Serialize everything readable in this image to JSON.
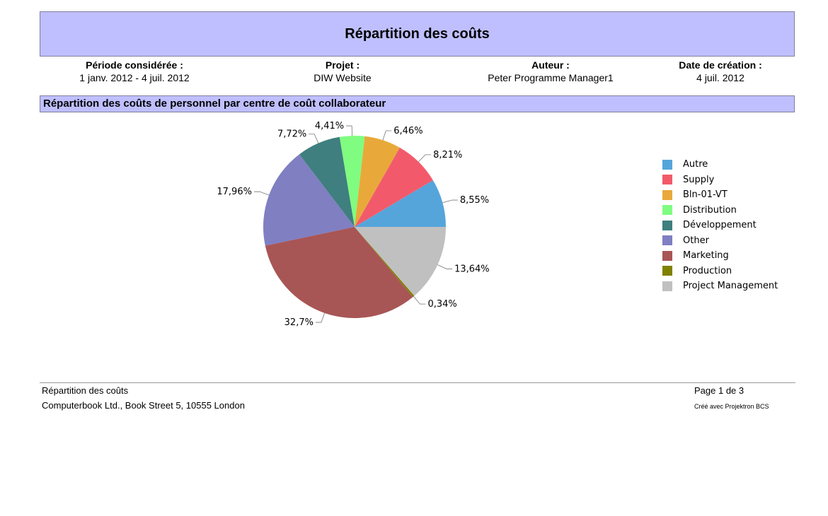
{
  "header": {
    "title": "Répartition des coûts",
    "period_label": "Période considérée :",
    "period_value": "1 janv. 2012 - 4 juil. 2012",
    "project_label": "Projet :",
    "project_value": "DIW Website",
    "author_label": "Auteur :",
    "author_value": "Peter Programme Manager1",
    "date_label": "Date de création :",
    "date_value": "4 juil. 2012"
  },
  "section": {
    "title": "Répartition des coûts de personnel par centre de coût collaborateur"
  },
  "chart_data": {
    "type": "pie",
    "legend_position": "right",
    "start_angle_deg": 0,
    "direction": "counterclockwise",
    "slices": [
      {
        "label": "Autre",
        "value": 8.55,
        "display": "8,55%",
        "color": "#55a5db"
      },
      {
        "label": "Supply",
        "value": 8.21,
        "display": "8,21%",
        "color": "#f25a6b"
      },
      {
        "label": "Bln-01-VT",
        "value": 6.46,
        "display": "6,46%",
        "color": "#e8a93a"
      },
      {
        "label": "Distribution",
        "value": 4.41,
        "display": "4,41%",
        "color": "#80fc80"
      },
      {
        "label": "Développement",
        "value": 7.72,
        "display": "7,72%",
        "color": "#3f7f7f"
      },
      {
        "label": "Other",
        "value": 17.96,
        "display": "17,96%",
        "color": "#7f7fc2"
      },
      {
        "label": "Marketing",
        "value": 32.7,
        "display": "32,7%",
        "color": "#a85555"
      },
      {
        "label": "Production",
        "value": 0.34,
        "display": "0,34%",
        "color": "#808000"
      },
      {
        "label": "Project Management",
        "value": 13.64,
        "display": "13,64%",
        "color": "#c0c0c0"
      }
    ]
  },
  "footer": {
    "title": "Répartition des coûts",
    "address": "Computerbook Ltd., Book Street 5, 10555 London",
    "page": "Page 1 de 3",
    "created_with": "Créé avec Projektron BCS"
  }
}
